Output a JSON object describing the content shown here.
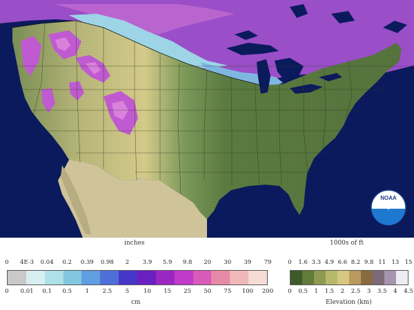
{
  "map": {
    "region": "Contiguous United States",
    "ocean_color": "#0b1a5c",
    "logo_text": "NOAA"
  },
  "snow_legend": {
    "title_top": "inches",
    "title_bottom": "cm",
    "ticks_top": [
      "0",
      "4E-3",
      "0.04",
      "0.2",
      "0.39",
      "0.98",
      "2",
      "3.9",
      "5.9",
      "9.8",
      "20",
      "30",
      "39",
      "79"
    ],
    "ticks_bottom": [
      "0",
      "0.01",
      "0.1",
      "0.5",
      "1",
      "2.5",
      "5",
      "10",
      "15",
      "25",
      "50",
      "75",
      "100",
      "200"
    ],
    "colors": [
      "#c9c9c9",
      "#d8eef0",
      "#aee0e8",
      "#82c6e0",
      "#5f9ee0",
      "#4f6fd8",
      "#4636c8",
      "#6a1fc0",
      "#9b27c2",
      "#c13ac8",
      "#d95ab8",
      "#e58aa6",
      "#f0b8b8",
      "#f6dcd4"
    ]
  },
  "elevation_legend": {
    "title_top": "1000s of ft",
    "title_bottom": "Elevation (km)",
    "ticks_top": [
      "0",
      "1.6",
      "3.3",
      "4.9",
      "6.6",
      "8.2",
      "9.8",
      "11",
      "13",
      "15"
    ],
    "ticks_bottom": [
      "0",
      "0.5",
      "1",
      "1.5",
      "2",
      "2.5",
      "3",
      "3.5",
      "4",
      "4.5"
    ],
    "colors": [
      "#3f5a2a",
      "#627a3a",
      "#8e9a52",
      "#b8b86a",
      "#d6c880",
      "#b99a5c",
      "#8a6a40",
      "#7d6a78",
      "#a794ae",
      "#ececf2"
    ]
  }
}
